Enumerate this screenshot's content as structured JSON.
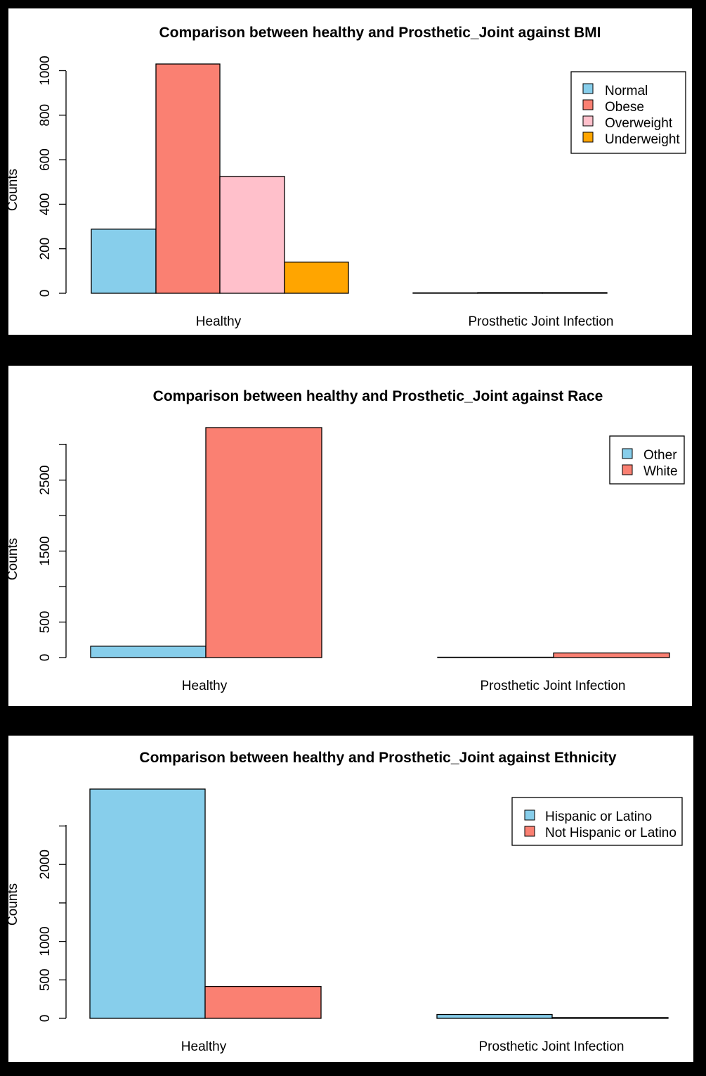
{
  "colors": {
    "skyblue": "#87CEEB",
    "salmon": "#FA8072",
    "pink": "#FFC0CB",
    "orange": "#FFA500"
  },
  "chart_data": [
    {
      "type": "bar",
      "title": "Comparison between healthy and Prosthetic_Joint against BMI",
      "ylabel": "Counts",
      "xlabel": "",
      "categories": [
        "Healthy",
        "Prosthetic Joint Infection"
      ],
      "series": [
        {
          "name": "Normal",
          "color": "#87CEEB",
          "values": [
            288,
            2
          ]
        },
        {
          "name": "Obese",
          "color": "#FA8072",
          "values": [
            1030,
            3
          ]
        },
        {
          "name": "Overweight",
          "color": "#FFC0CB",
          "values": [
            525,
            3
          ]
        },
        {
          "name": "Underweight",
          "color": "#FFA500",
          "values": [
            140,
            0
          ]
        }
      ],
      "yticks": [
        0,
        200,
        400,
        600,
        800,
        1000
      ],
      "ylim": [
        0,
        1030
      ],
      "legend": "top-right",
      "grid": false
    },
    {
      "type": "bar",
      "title": "Comparison between healthy and Prosthetic_Joint against Race",
      "ylabel": "Counts",
      "xlabel": "",
      "categories": [
        "Healthy",
        "Prosthetic Joint Infection"
      ],
      "series": [
        {
          "name": "Other",
          "color": "#87CEEB",
          "values": [
            160,
            5
          ]
        },
        {
          "name": "White",
          "color": "#FA8072",
          "values": [
            3240,
            65
          ]
        }
      ],
      "yticks": [
        0,
        500,
        1000,
        1500,
        2000,
        2500,
        3000
      ],
      "ytick_labels": [
        "0",
        "500",
        "",
        "1500",
        "",
        "2500",
        ""
      ],
      "ylim": [
        0,
        3240
      ],
      "legend": "top-right",
      "grid": false
    },
    {
      "type": "bar",
      "title": "Comparison between healthy and Prosthetic_Joint against Ethnicity",
      "ylabel": "Counts",
      "xlabel": "",
      "categories": [
        "Healthy",
        "Prosthetic Joint Infection"
      ],
      "series": [
        {
          "name": "Hispanic or Latino",
          "color": "#87CEEB",
          "values": [
            2980,
            50
          ]
        },
        {
          "name": "Not Hispanic or Latino",
          "color": "#FA8072",
          "values": [
            415,
            10
          ]
        }
      ],
      "yticks": [
        0,
        500,
        1000,
        1500,
        2000,
        2500
      ],
      "ytick_labels": [
        "0",
        "500",
        "1000",
        "",
        "2000",
        ""
      ],
      "ylim": [
        0,
        2980
      ],
      "legend": "top-right",
      "grid": false
    }
  ]
}
